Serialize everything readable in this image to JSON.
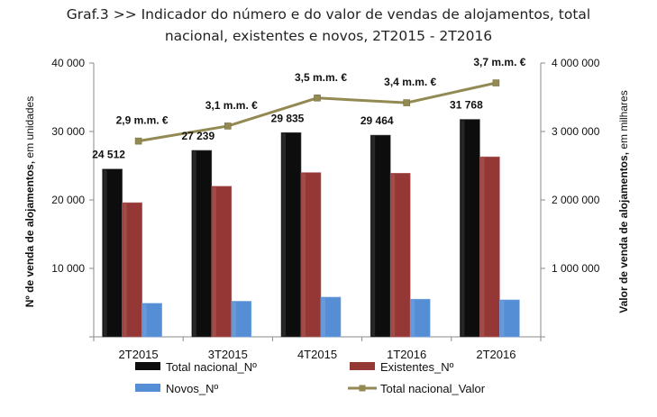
{
  "chart_data": {
    "type": "bar",
    "title_line1": "Graf.3  >>  Indicador do número e do valor de vendas de alojamentos, total",
    "title_line2": "nacional, existentes e novos, 2T2015 - 2T2016",
    "categories": [
      "2T2015",
      "3T2015",
      "4T2015",
      "1T2016",
      "2T2016"
    ],
    "series": [
      {
        "name": "Total nacional_Nº",
        "type": "bar",
        "axis": "left",
        "color": "#0d0d0d",
        "values": [
          24512,
          27239,
          29835,
          29464,
          31768
        ],
        "labels": [
          "24 512",
          "27 239",
          "29 835",
          "29 464",
          "31 768"
        ]
      },
      {
        "name": "Existentes_Nº",
        "type": "bar",
        "axis": "left",
        "color": "#953735",
        "values": [
          19600,
          22000,
          24000,
          23900,
          26300
        ]
      },
      {
        "name": "Novos_Nº",
        "type": "bar",
        "axis": "left",
        "color": "#558ed5",
        "values": [
          4900,
          5200,
          5800,
          5500,
          5400
        ]
      },
      {
        "name": "Total nacional_Valor",
        "type": "line",
        "axis": "right",
        "color": "#938953",
        "values": [
          2860000,
          3080000,
          3490000,
          3420000,
          3710000
        ],
        "labels": [
          "2,9 m.m. €",
          "3,1 m.m. €",
          "3,5 m.m. €",
          "3,4 m.m. €",
          "3,7 m.m. €"
        ]
      }
    ],
    "y_left": {
      "min": 0,
      "max": 40000,
      "ticks": [
        0,
        10000,
        20000,
        30000,
        40000
      ],
      "tick_labels": [
        "",
        "10 000",
        "20 000",
        "30 000",
        "40 000"
      ],
      "label_bold": "Nº de venda de alojamentos,",
      "label_normal": " em unidades"
    },
    "y_right": {
      "min": 0,
      "max": 4000000,
      "ticks": [
        0,
        1000000,
        2000000,
        3000000,
        4000000
      ],
      "tick_labels": [
        "",
        "1 000 000",
        "2 000 000",
        "3 000 000",
        "4 000 000"
      ],
      "label_bold": "Valor de venda de alojamentos,",
      "label_normal": " em milhares"
    },
    "legend_position": "bottom",
    "grid": false
  }
}
